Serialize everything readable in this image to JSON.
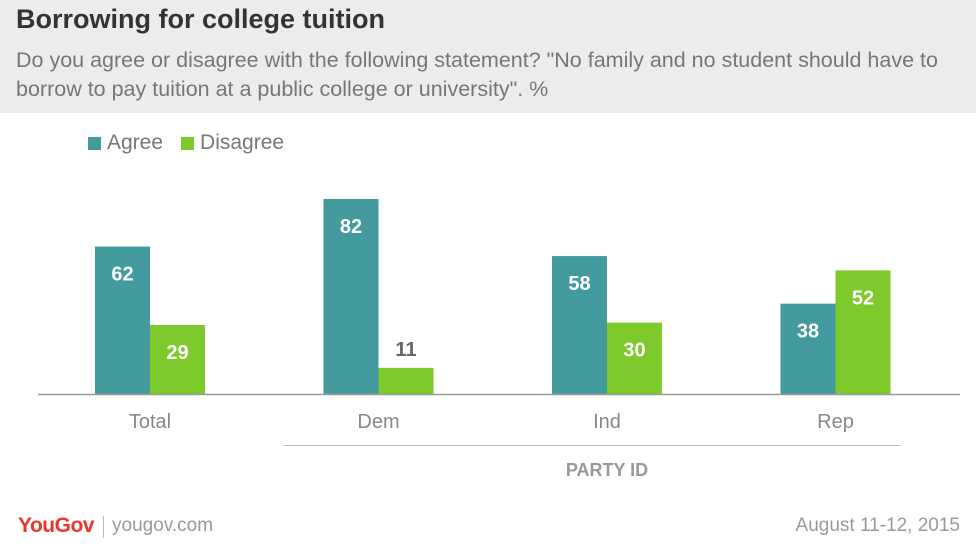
{
  "header": {
    "title": "Borrowing for college tuition",
    "subtitle": "Do you agree or disagree with the following statement? \"No family and no student should have to borrow to pay tuition at a public college or university\". %"
  },
  "legend": [
    {
      "name": "Agree",
      "color": "#439b9e"
    },
    {
      "name": "Disagree",
      "color": "#7ec92b"
    }
  ],
  "chart_data": {
    "type": "bar",
    "title": "Borrowing for college tuition",
    "categories": [
      "Total",
      "Dem",
      "Ind",
      "Rep"
    ],
    "series": [
      {
        "name": "Agree",
        "values": [
          62,
          82,
          58,
          38
        ],
        "color": "#439b9e"
      },
      {
        "name": "Disagree",
        "values": [
          29,
          11,
          30,
          52
        ],
        "color": "#7ec92b"
      }
    ],
    "group_label": "PARTY ID",
    "ylim": [
      0,
      82
    ],
    "grid": false,
    "legend_position": "top-left"
  },
  "footer": {
    "brand": "YouGov",
    "url": "yougov.com",
    "date": "August 11-12, 2015"
  }
}
